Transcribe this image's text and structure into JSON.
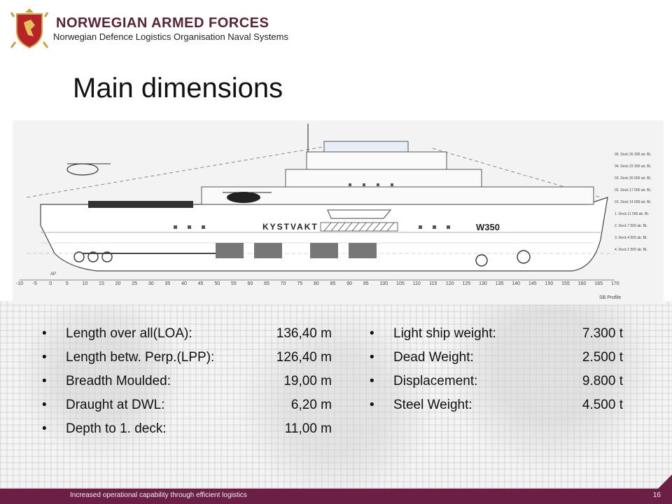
{
  "header": {
    "org_title": "NORWEGIAN ARMED FORCES",
    "org_subtitle": "Norwegian Defence Logistics Organisation Naval Systems",
    "logo_icon": "armed-forces-crest-icon"
  },
  "page_title": "Main dimensions",
  "ship_drawing": {
    "hull_marking_left": "KYSTVAKT",
    "hull_marking_right": "W350",
    "profile_label": "SB Profile",
    "aft_label": "AP",
    "scale_ticks": [
      "-10",
      "-5",
      "0",
      "5",
      "10",
      "15",
      "20",
      "25",
      "30",
      "35",
      "40",
      "45",
      "50",
      "55",
      "60",
      "65",
      "70",
      "75",
      "80",
      "85",
      "90",
      "95",
      "100",
      "105",
      "110",
      "115",
      "120",
      "125",
      "130",
      "135",
      "140",
      "145",
      "150",
      "155",
      "160",
      "165",
      "170"
    ],
    "deck_labels": [
      "05. Deck  26 300 ab. BL",
      "04. Deck  23 300 ab. BL",
      "03. Deck  20 000 ab. BL",
      "02. Deck  17 000 ab. BL",
      "01. Deck  14 000 ab. BL",
      "1. Deck  11 000 ab. BL",
      "2. Deck  7 500 ab. BL",
      "3. Deck  4 500 ab. BL",
      "4. Deck  1 500 ab. BL"
    ]
  },
  "specs_left": [
    {
      "label": "Length over all(LOA):",
      "value": "136,40 m"
    },
    {
      "label": "Length betw. Perp.(LPP):",
      "value": "126,40 m"
    },
    {
      "label": "Breadth Moulded:",
      "value": "19,00 m"
    },
    {
      "label": "Draught at DWL:",
      "value": "6,20 m"
    },
    {
      "label": "Depth to 1. deck:",
      "value": "11,00 m"
    }
  ],
  "specs_right": [
    {
      "label": "Light ship weight:",
      "value": "7.300 t"
    },
    {
      "label": "Dead Weight:",
      "value": "2.500 t"
    },
    {
      "label": "Displacement:",
      "value": "9.800 t"
    },
    {
      "label": "Steel Weight:",
      "value": "4.500 t"
    }
  ],
  "bullet_char": "•",
  "footer": {
    "tagline": "Increased operational capability through efficient logistics",
    "page_number": "16"
  },
  "colors": {
    "brand": "#6c1f44",
    "logo_red": "#b8232a",
    "logo_gold": "#c9a13b"
  }
}
